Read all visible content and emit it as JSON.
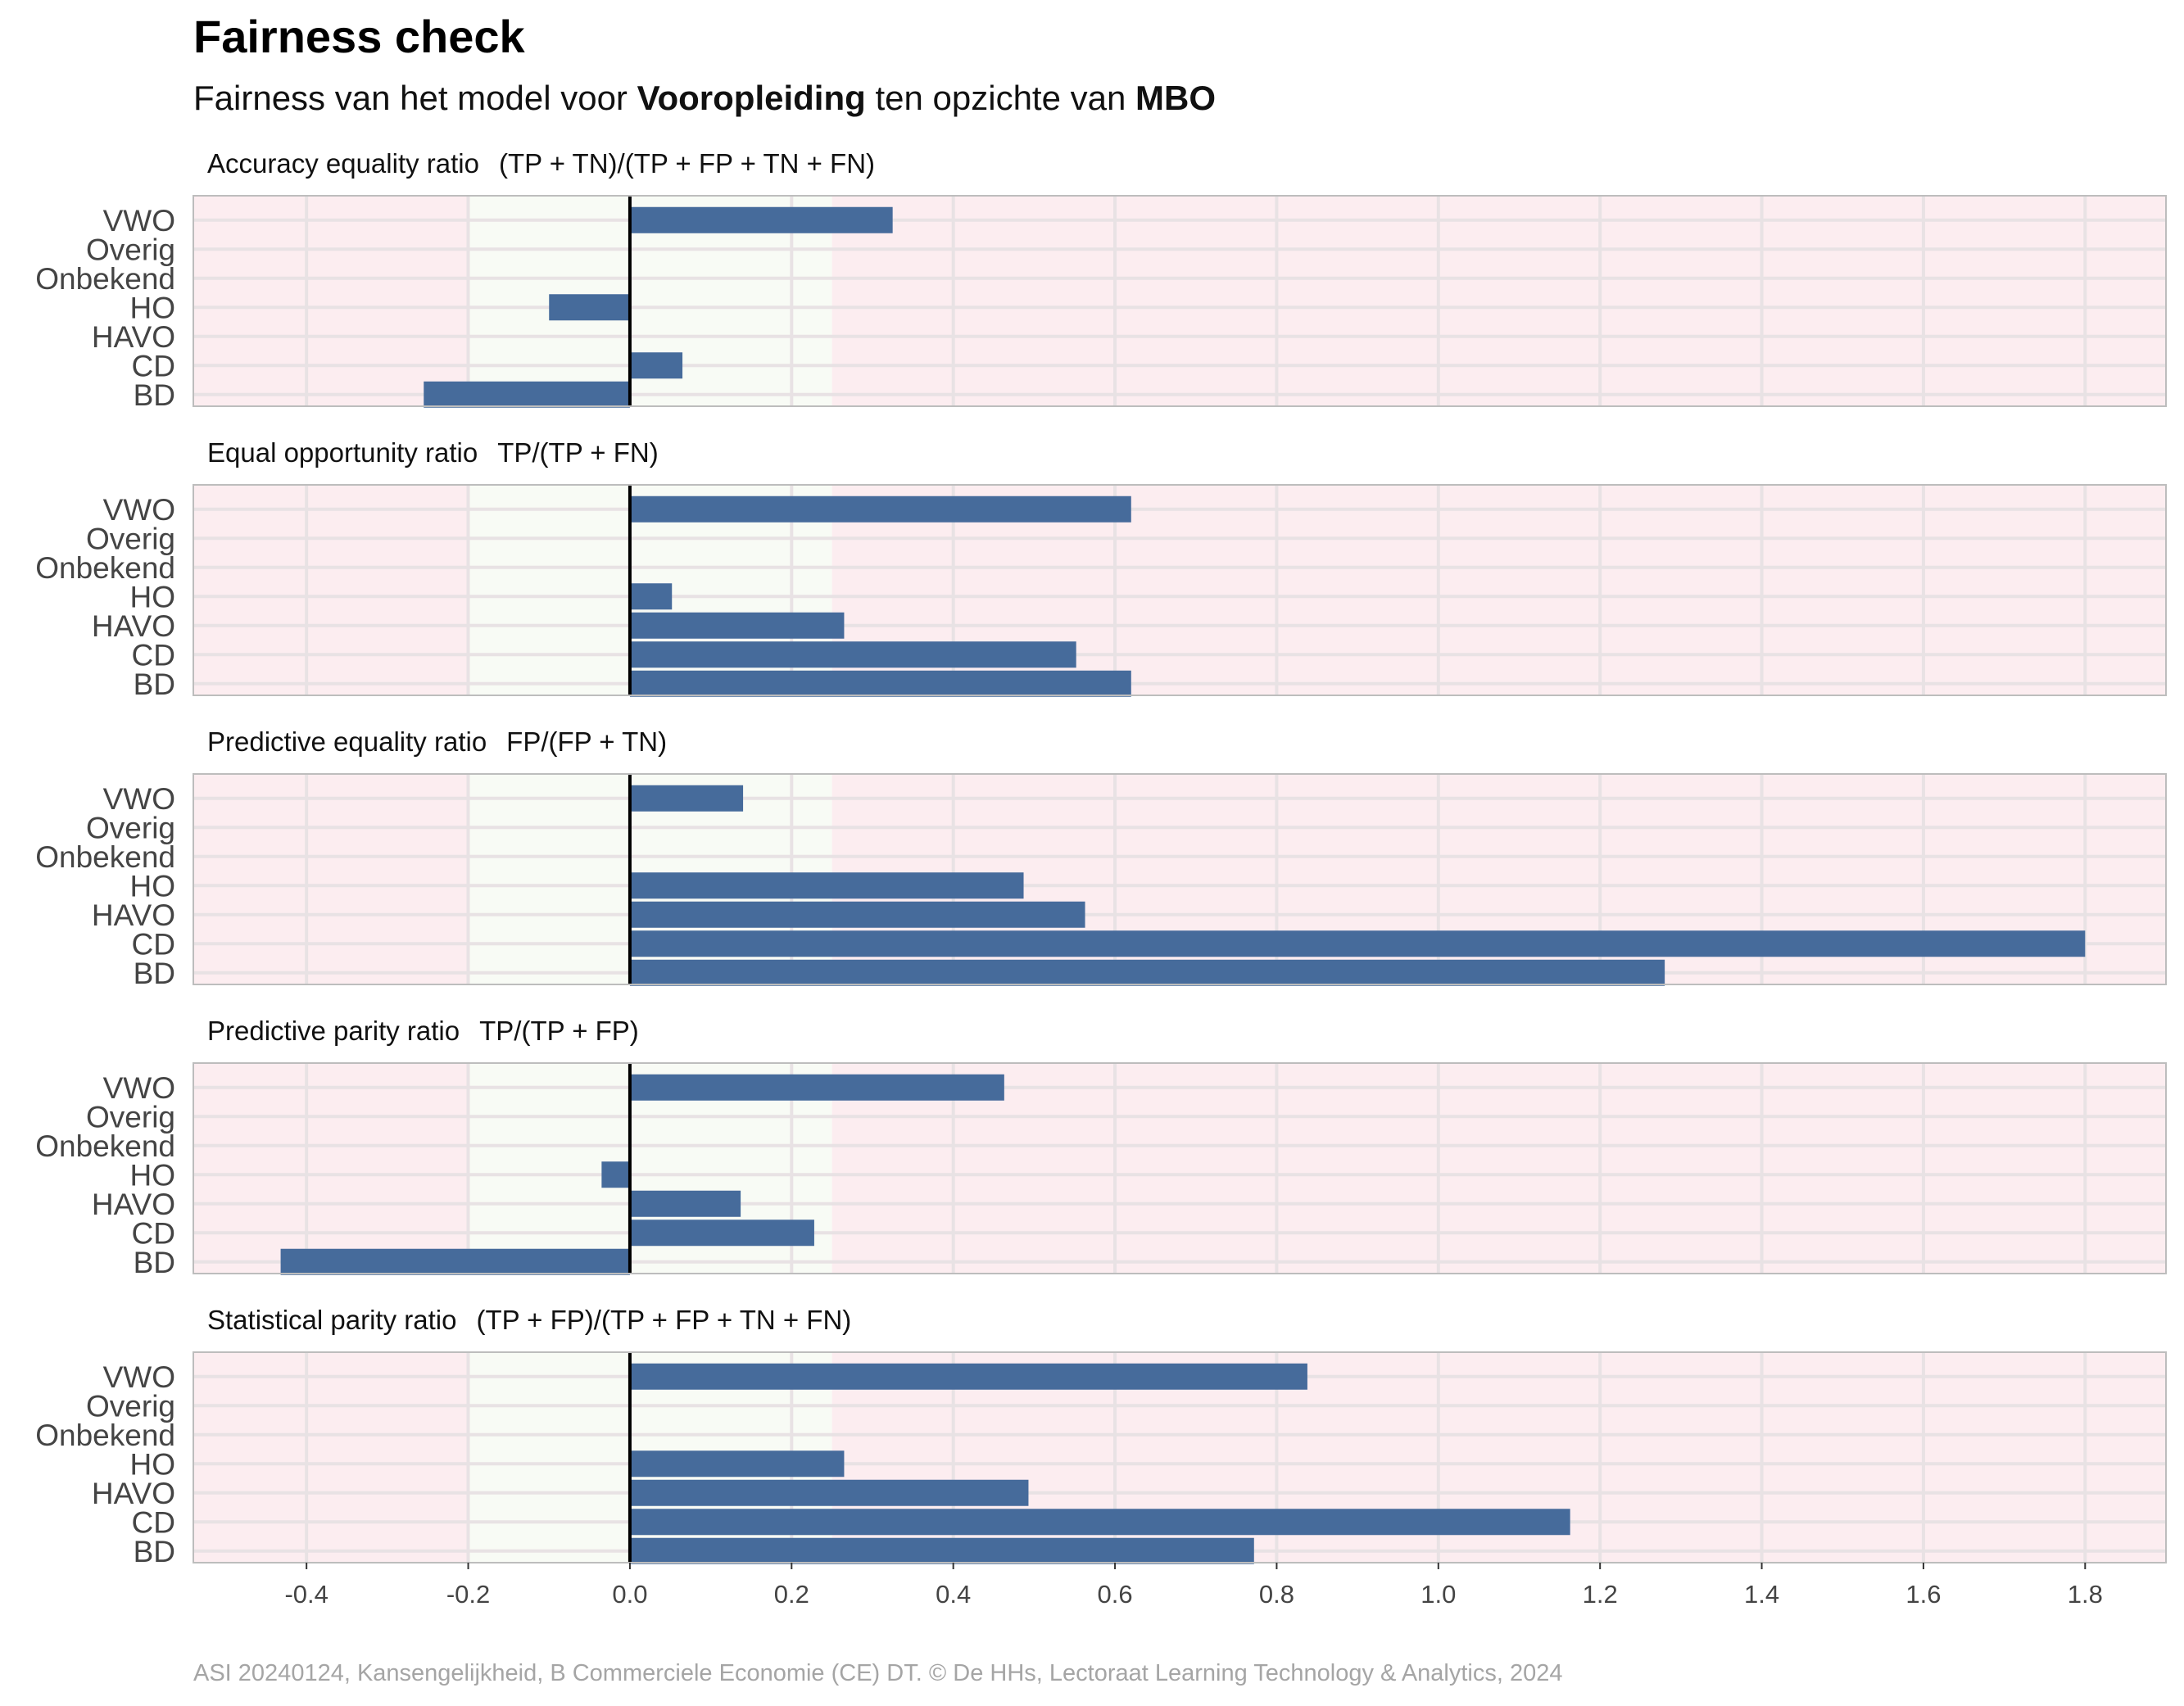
{
  "title": "Fairness check",
  "subtitle": {
    "prefix": "Fairness van het model voor ",
    "group": "Vooropleiding",
    "middle": " ten opzichte van ",
    "reference": "MBO"
  },
  "caption": "ASI 20240124, Kansengelijkheid, B Commerciele Economie (CE) DT. © De HHs, Lectoraat Learning Technology & Analytics, 2024",
  "colors": {
    "bar": "#466b9b",
    "fair_band": "#f8fbf5",
    "unfair_band": "#fcedf0",
    "grid": "#e8e2e4",
    "panel_border": "#bdbdbd",
    "zero_line": "#000000"
  },
  "chart_data": {
    "type": "bar",
    "orientation": "horizontal",
    "categories": [
      "VWO",
      "Overig",
      "Onbekend",
      "HO",
      "HAVO",
      "CD",
      "BD"
    ],
    "xlim": [
      -0.54,
      1.9
    ],
    "x_ticks": [
      -0.4,
      -0.2,
      0.0,
      0.2,
      0.4,
      0.6,
      0.8,
      1.0,
      1.2,
      1.4,
      1.6,
      1.8
    ],
    "x_tick_labels": [
      "-0.4",
      "-0.2",
      "0.0",
      "0.2",
      "0.4",
      "0.6",
      "0.8",
      "1.0",
      "1.2",
      "1.4",
      "1.6",
      "1.8"
    ],
    "fair_range": [
      -0.2,
      0.25
    ],
    "grid": true,
    "panels": [
      {
        "name": "Accuracy equality ratio",
        "formula": "(TP + TN)/(TP + FP + TN + FN)",
        "values": [
          0.325,
          null,
          null,
          -0.1,
          null,
          0.065,
          -0.255
        ]
      },
      {
        "name": "Equal opportunity ratio",
        "formula": "TP/(TP + FN)",
        "values": [
          0.62,
          null,
          null,
          0.052,
          0.265,
          0.552,
          0.62
        ]
      },
      {
        "name": "Predictive equality ratio",
        "formula": "FP/(FP + TN)",
        "values": [
          0.14,
          null,
          null,
          0.487,
          0.563,
          1.8,
          1.28
        ]
      },
      {
        "name": "Predictive parity ratio",
        "formula": "TP/(TP + FP)",
        "values": [
          0.463,
          null,
          null,
          -0.035,
          0.137,
          0.228,
          -0.432
        ]
      },
      {
        "name": "Statistical parity ratio",
        "formula": "(TP + FP)/(TP + FP + TN + FN)",
        "values": [
          0.838,
          null,
          null,
          0.265,
          0.493,
          1.163,
          0.772
        ]
      }
    ]
  }
}
